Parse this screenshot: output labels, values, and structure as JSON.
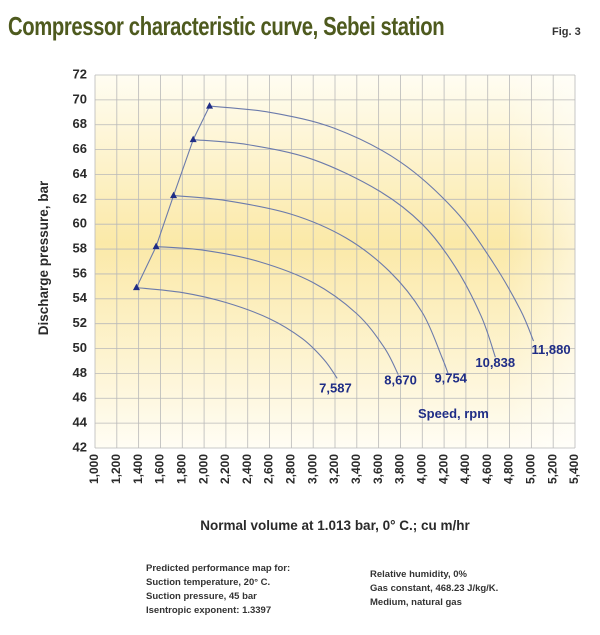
{
  "title": "Compressor characteristic curve, Sebei station",
  "figure_label": "Fig. 3",
  "notes_left": [
    "Predicted performance map for:",
    "Suction temperature, 20° C.",
    "Suction pressure, 45 bar",
    "Isentropic exponent:   1.3397"
  ],
  "notes_right": [
    "Relative humidity, 0%",
    "Gas constant, 468.23 J/kg/K.",
    "Medium, natural gas"
  ],
  "chart_data": {
    "type": "line",
    "xlabel": "Normal volume at 1.013 bar, 0° C.; cu m/hr",
    "ylabel": "Discharge pressure, bar",
    "xlim": [
      1000,
      5400
    ],
    "ylim": [
      42,
      72
    ],
    "x_ticks": [
      "1,000",
      "1,200",
      "1,400",
      "1,600",
      "1,800",
      "2,000",
      "2,200",
      "2,400",
      "2,600",
      "2,800",
      "3,000",
      "3,200",
      "3,400",
      "3,600",
      "3,800",
      "4,000",
      "4,200",
      "4,400",
      "4,600",
      "4,800",
      "5,000",
      "5,200",
      "5,400"
    ],
    "y_ticks": [
      "42",
      "44",
      "46",
      "48",
      "50",
      "52",
      "54",
      "56",
      "58",
      "60",
      "62",
      "64",
      "66",
      "68",
      "70",
      "72"
    ],
    "legend_title": "Speed, rpm",
    "grid": true,
    "series": [
      {
        "name": "7,587",
        "points": [
          [
            1380,
            54.9
          ],
          [
            1800,
            54.5
          ],
          [
            2200,
            53.7
          ],
          [
            2600,
            52.4
          ],
          [
            2900,
            50.8
          ],
          [
            3100,
            49.1
          ],
          [
            3220,
            47.6
          ]
        ]
      },
      {
        "name": "8,670",
        "points": [
          [
            1560,
            58.2
          ],
          [
            2000,
            57.9
          ],
          [
            2500,
            57.0
          ],
          [
            3000,
            55.3
          ],
          [
            3400,
            52.8
          ],
          [
            3650,
            50.1
          ],
          [
            3780,
            47.9
          ]
        ]
      },
      {
        "name": "9,754",
        "points": [
          [
            1720,
            62.3
          ],
          [
            2200,
            61.9
          ],
          [
            2800,
            60.8
          ],
          [
            3300,
            58.9
          ],
          [
            3700,
            56.2
          ],
          [
            4000,
            52.9
          ],
          [
            4180,
            49.3
          ],
          [
            4240,
            47.9
          ]
        ]
      },
      {
        "name": "10,838",
        "points": [
          [
            1900,
            66.8
          ],
          [
            2400,
            66.4
          ],
          [
            3000,
            65.2
          ],
          [
            3600,
            62.7
          ],
          [
            4000,
            60.0
          ],
          [
            4300,
            56.6
          ],
          [
            4540,
            52.6
          ],
          [
            4670,
            49.3
          ]
        ]
      },
      {
        "name": "11,880",
        "points": [
          [
            2050,
            69.5
          ],
          [
            2600,
            69.0
          ],
          [
            3200,
            67.7
          ],
          [
            3800,
            65.0
          ],
          [
            4300,
            61.1
          ],
          [
            4650,
            56.9
          ],
          [
            4900,
            53.1
          ],
          [
            5020,
            50.6
          ]
        ]
      }
    ],
    "surge_line": [
      [
        1380,
        54.9
      ],
      [
        1560,
        58.2
      ],
      [
        1720,
        62.3
      ],
      [
        1900,
        66.8
      ],
      [
        2050,
        69.5
      ]
    ],
    "colors": {
      "curve": "#6c7bab",
      "marker": "#1f2d86",
      "speed_label": "#1f2d86",
      "title": "#4e5a1e"
    }
  }
}
